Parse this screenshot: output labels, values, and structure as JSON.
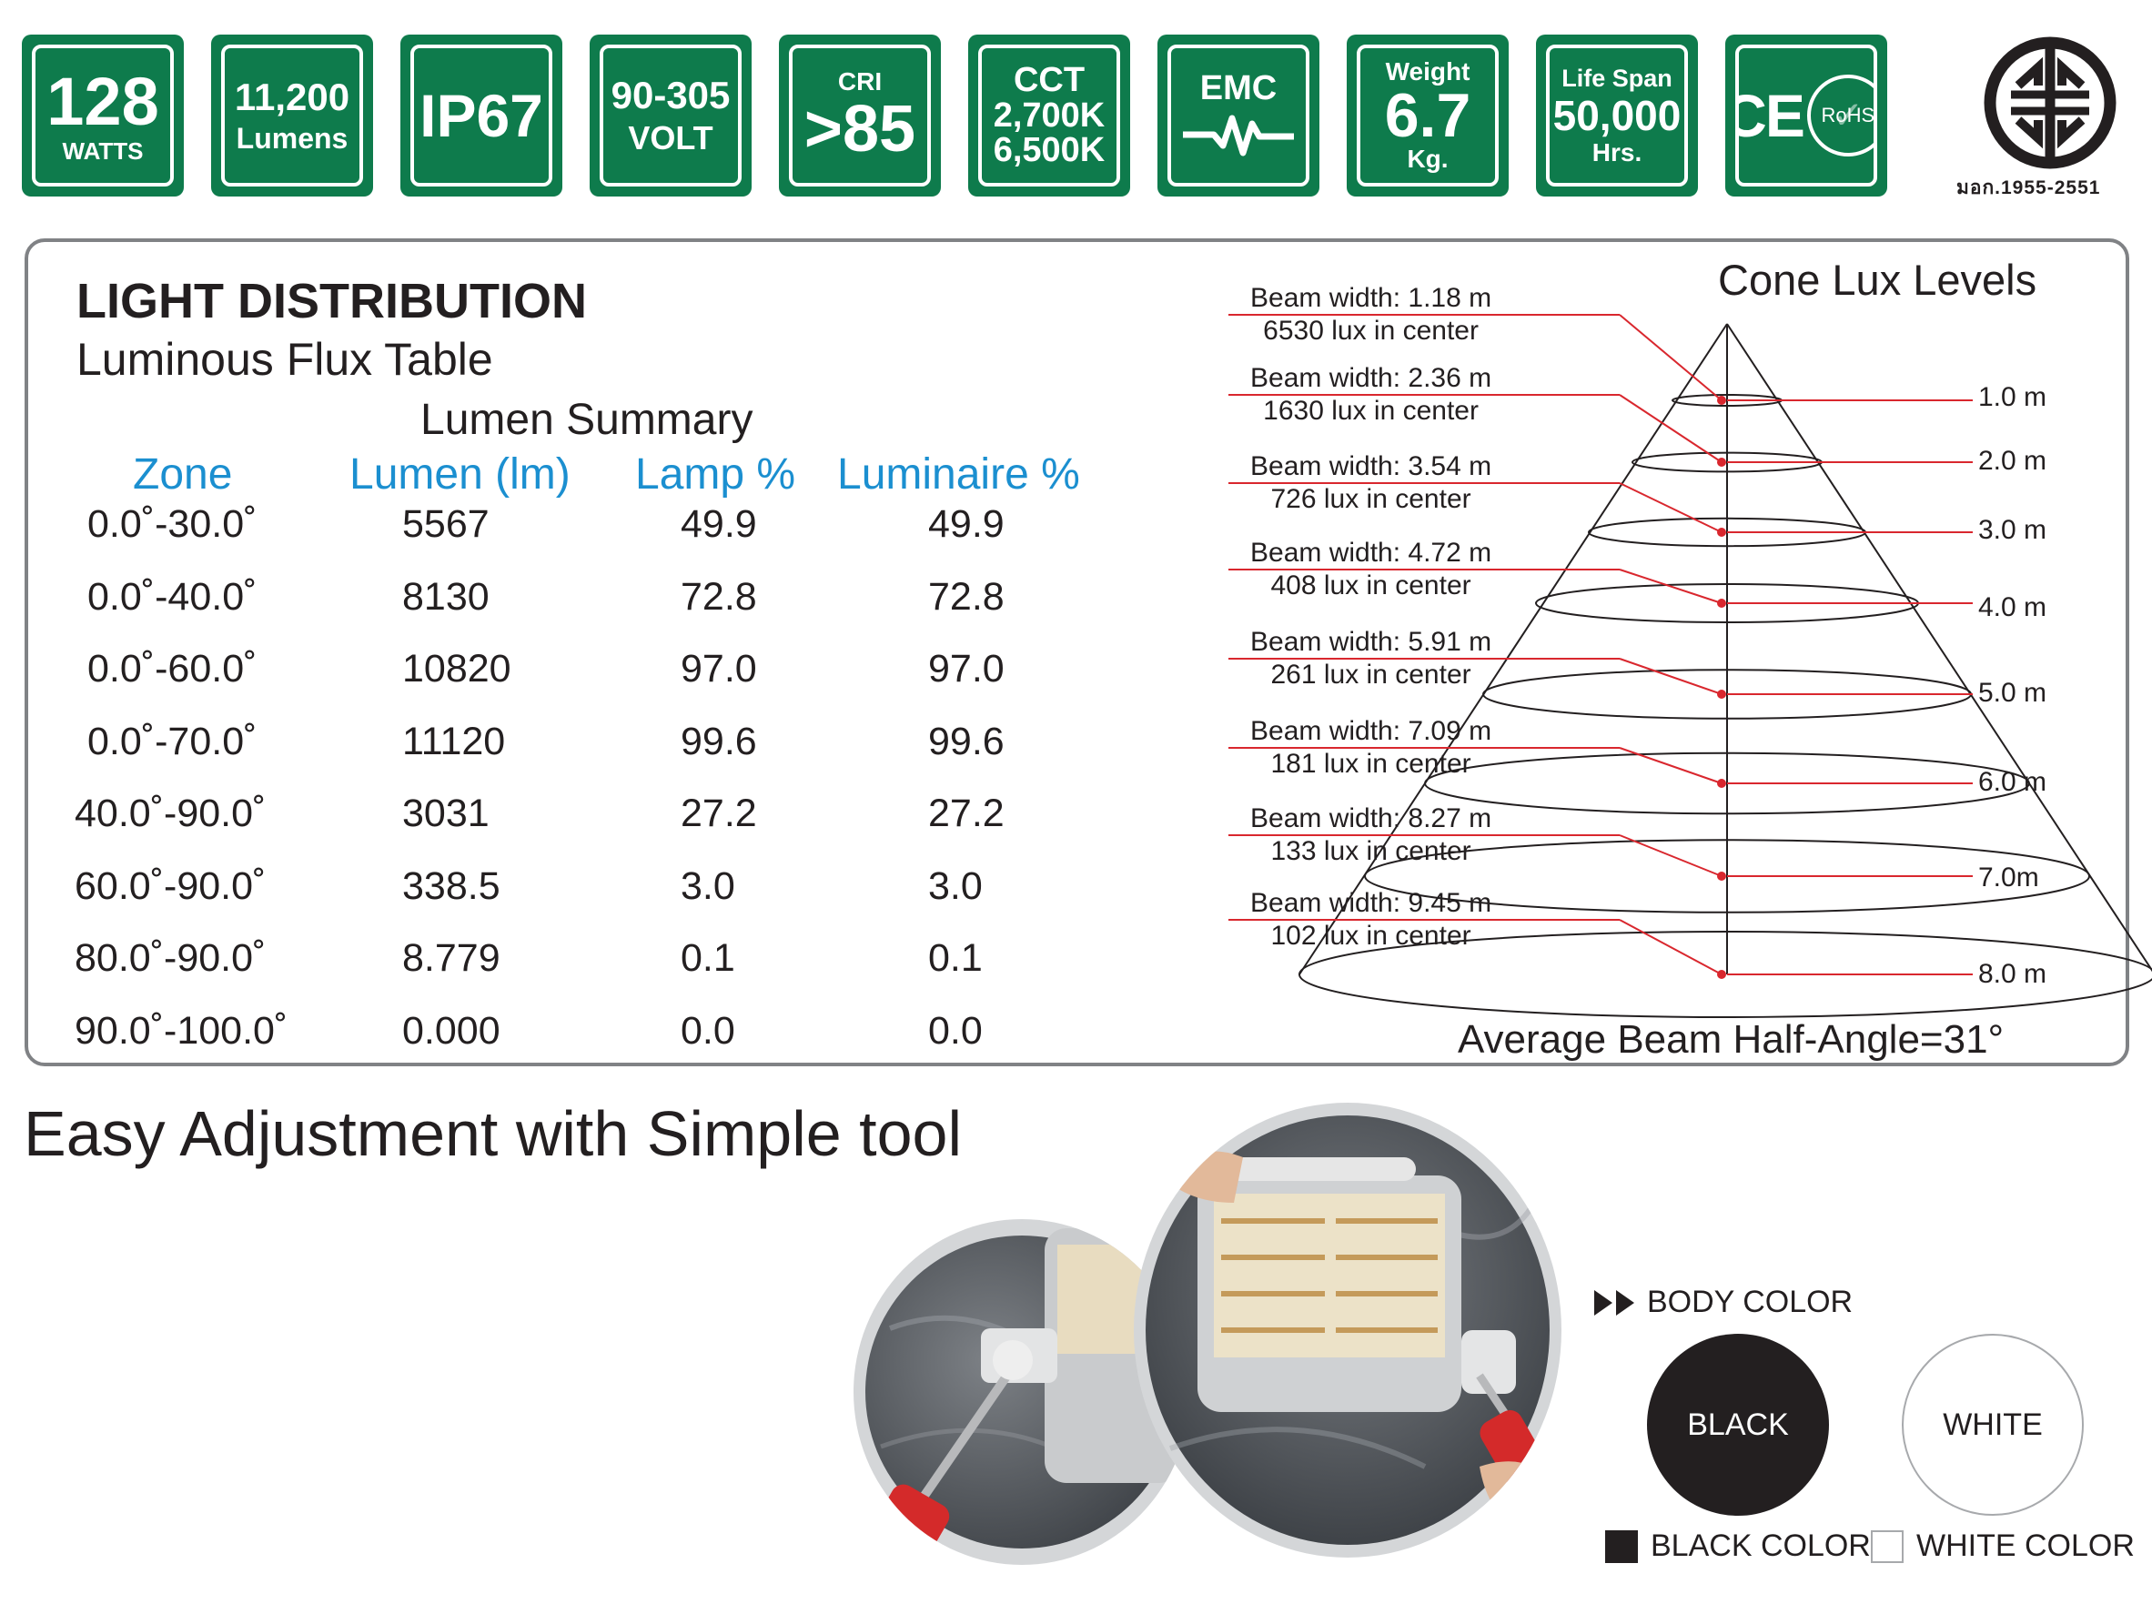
{
  "badges": {
    "watts": {
      "value": "128",
      "unit": "WATTS"
    },
    "lumens": {
      "value": "11,200",
      "unit": "Lumens"
    },
    "ip": {
      "value": "IP67"
    },
    "volt": {
      "value": "90-305",
      "unit": "VOLT"
    },
    "cri": {
      "label": "CRI",
      "value": ">85"
    },
    "cct": {
      "label": "CCT",
      "line1": "2,700K",
      "line2": "6,500K"
    },
    "emc": {
      "label": "EMC"
    },
    "weight": {
      "label": "Weight",
      "value": "6.7",
      "unit": "Kg."
    },
    "life": {
      "label": "Life Span",
      "value": "50,000",
      "unit": "Hrs."
    },
    "cert": {
      "ce": "CE",
      "rohs": "RoHS"
    }
  },
  "tis": {
    "caption": "มอก.1955-2551"
  },
  "light_distribution": {
    "title": "LIGHT DISTRIBUTION",
    "subtitle": "Luminous Flux Table",
    "summary_title": "Lumen Summary",
    "headers": [
      "Zone",
      "Lumen (lm)",
      "Lamp %",
      "Luminaire %"
    ],
    "rows": [
      [
        "0.0˚-30.0˚",
        "5567",
        "49.9",
        "49.9"
      ],
      [
        "0.0˚-40.0˚",
        "8130",
        "72.8",
        "72.8"
      ],
      [
        "0.0˚-60.0˚",
        "10820",
        "97.0",
        "97.0"
      ],
      [
        "0.0˚-70.0˚",
        "11120",
        "99.6",
        "99.6"
      ],
      [
        "40.0˚-90.0˚",
        "3031",
        "27.2",
        "27.2"
      ],
      [
        "60.0˚-90.0˚",
        "338.5",
        "3.0",
        "3.0"
      ],
      [
        "80.0˚-90.0˚",
        "8.779",
        "0.1",
        "0.1"
      ],
      [
        "90.0˚-100.0˚",
        "0.000",
        "0.0",
        "0.0"
      ]
    ]
  },
  "cone": {
    "title": "Cone Lux Levels",
    "levels": [
      {
        "distance": "1.0 m",
        "beam": "Beam width: 1.18 m",
        "lux": "6530 lux in center"
      },
      {
        "distance": "2.0 m",
        "beam": "Beam width: 2.36 m",
        "lux": "1630 lux in center"
      },
      {
        "distance": "3.0 m",
        "beam": "Beam width: 3.54 m",
        "lux": "726 lux in center"
      },
      {
        "distance": "4.0 m",
        "beam": "Beam width: 4.72 m",
        "lux": "408 lux in center"
      },
      {
        "distance": "5.0 m",
        "beam": "Beam width: 5.91 m",
        "lux": "261 lux in center"
      },
      {
        "distance": "6.0 m",
        "beam": "Beam width: 7.09 m",
        "lux": "181 lux in center"
      },
      {
        "distance": "7.0m",
        "beam": "Beam width: 8.27 m",
        "lux": "133 lux in center"
      },
      {
        "distance": "8.0 m",
        "beam": "Beam width: 9.45 m",
        "lux": "102 lux in center"
      }
    ],
    "average": "Average Beam Half-Angle=31°",
    "line_color": "#d9272e"
  },
  "adjustment": {
    "title": "Easy Adjustment with Simple tool"
  },
  "body_color": {
    "title": "BODY COLOR",
    "black": "BLACK",
    "white": "WHITE",
    "black_legend": "BLACK COLOR",
    "white_legend": "WHITE COLOR"
  },
  "colors": {
    "badge_green": "#0e7b4c",
    "header_blue": "#1b8fd0",
    "pointer_red": "#d9272e"
  }
}
